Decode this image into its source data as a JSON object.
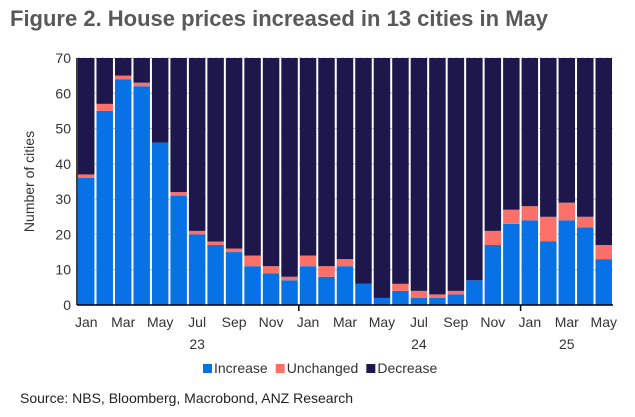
{
  "title": "Figure 2. House prices increased in 13 cities in May",
  "source": "Source: NBS, Bloomberg, Macrobond, ANZ Research",
  "chart_data": {
    "type": "bar",
    "stacked": true,
    "ylabel": "Number of cities",
    "ylim": [
      0,
      70
    ],
    "yticks": [
      0,
      10,
      20,
      30,
      40,
      50,
      60,
      70
    ],
    "categories": [
      "Jan 23",
      "Feb 23",
      "Mar 23",
      "Apr 23",
      "May 23",
      "Jun 23",
      "Jul 23",
      "Aug 23",
      "Sep 23",
      "Oct 23",
      "Nov 23",
      "Dec 23",
      "Jan 24",
      "Feb 24",
      "Mar 24",
      "Apr 24",
      "May 24",
      "Jun 24",
      "Jul 24",
      "Aug 24",
      "Sep 24",
      "Oct 24",
      "Nov 24",
      "Dec 24",
      "Jan 25",
      "Feb 25",
      "Mar 25",
      "Apr 25",
      "May 25"
    ],
    "month_labels": [
      "Jan",
      "",
      "Mar",
      "",
      "May",
      "",
      "Jul",
      "",
      "Sep",
      "",
      "Nov",
      "",
      "Jan",
      "",
      "Mar",
      "",
      "May",
      "",
      "Jul",
      "",
      "Sep",
      "",
      "Nov",
      "",
      "Jan",
      "",
      "Mar",
      "",
      "May"
    ],
    "year_labels": [
      {
        "label": "23",
        "index": 6
      },
      {
        "label": "24",
        "index": 18
      },
      {
        "label": "25",
        "index": 26
      }
    ],
    "series": [
      {
        "name": "Increase",
        "color": "#0672e6",
        "values": [
          36,
          55,
          64,
          62,
          46,
          31,
          20,
          17,
          15,
          11,
          9,
          7,
          11,
          8,
          11,
          6,
          2,
          4,
          2,
          2,
          3,
          7,
          17,
          23,
          24,
          18,
          24,
          22,
          13
        ]
      },
      {
        "name": "Unchanged",
        "color": "#fb7068",
        "values": [
          1,
          2,
          1,
          1,
          0,
          1,
          1,
          1,
          1,
          3,
          2,
          1,
          3,
          3,
          2,
          0,
          0,
          2,
          2,
          1,
          1,
          0,
          4,
          4,
          4,
          7,
          5,
          3,
          4
        ]
      },
      {
        "name": "Decrease",
        "color": "#1e174b",
        "values": [
          33,
          13,
          5,
          7,
          24,
          38,
          49,
          52,
          54,
          56,
          59,
          62,
          56,
          59,
          57,
          64,
          68,
          64,
          66,
          67,
          66,
          63,
          49,
          43,
          42,
          45,
          41,
          45,
          53
        ]
      }
    ],
    "legend": "bottom",
    "grid": true
  }
}
